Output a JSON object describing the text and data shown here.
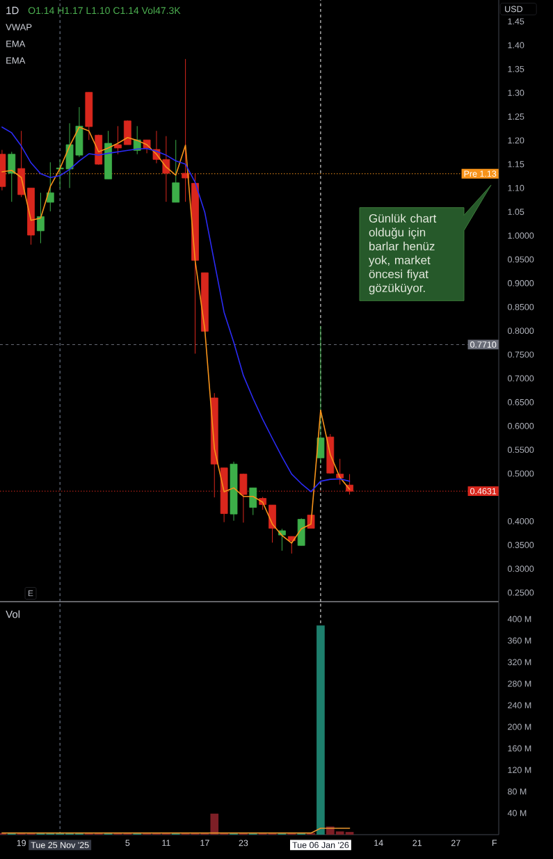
{
  "chart_data": [
    {
      "type": "candlestick",
      "title": "1D",
      "subtitle": "O1.14 H1.17 L1.10 C1.14 Vol47.3K",
      "categories": [
        null,
        null,
        "19",
        null,
        null,
        null,
        "Tue 25 Nov '25",
        null,
        null,
        null,
        null,
        null,
        null,
        "5",
        null,
        null,
        null,
        "11",
        null,
        null,
        null,
        "17",
        null,
        null,
        null,
        "23",
        null,
        null,
        null,
        null,
        null,
        null,
        null,
        "Tue 06 Jan '26",
        null,
        null,
        null,
        null,
        null,
        "14",
        null,
        null,
        null,
        "21",
        null,
        null,
        null,
        "27",
        null,
        null,
        null,
        "F"
      ],
      "ohlc": [
        [
          1.171,
          1.18,
          1.095,
          1.103
        ],
        [
          1.131,
          1.176,
          1.071,
          1.171
        ],
        [
          1.141,
          1.22,
          1.081,
          1.086
        ],
        [
          1.1,
          1.1,
          0.981,
          1.001
        ],
        [
          1.01,
          1.09,
          0.984,
          1.04
        ],
        [
          1.07,
          1.154,
          1.051,
          1.09
        ],
        [
          1.14,
          1.16,
          1.1,
          1.142
        ],
        [
          1.14,
          1.236,
          1.1,
          1.191
        ],
        [
          1.169,
          1.27,
          1.165,
          1.23
        ],
        [
          1.301,
          1.301,
          1.201,
          1.229
        ],
        [
          1.211,
          1.212,
          1.149,
          1.15
        ],
        [
          1.119,
          1.22,
          1.119,
          1.194
        ],
        [
          1.191,
          1.23,
          1.171,
          1.184
        ],
        [
          1.241,
          1.242,
          1.191,
          1.191
        ],
        [
          1.179,
          1.23,
          1.171,
          1.201
        ],
        [
          1.201,
          1.201,
          1.173,
          1.184
        ],
        [
          1.181,
          1.22,
          1.152,
          1.16
        ],
        [
          1.16,
          1.209,
          1.071,
          1.131
        ],
        [
          1.07,
          1.201,
          1.07,
          1.111
        ],
        [
          1.131,
          1.371,
          1.071,
          1.121
        ],
        [
          1.11,
          1.131,
          0.752,
          0.948
        ],
        [
          0.922,
          0.922,
          0.799,
          0.799
        ],
        [
          0.659,
          0.669,
          0.45,
          0.52
        ],
        [
          0.512,
          0.512,
          0.398,
          0.416
        ],
        [
          0.415,
          0.525,
          0.401,
          0.52
        ],
        [
          0.499,
          0.5,
          0.397,
          0.456
        ],
        [
          0.429,
          0.47,
          0.413,
          0.47
        ],
        [
          0.448,
          0.451,
          0.424,
          0.435
        ],
        [
          0.434,
          0.434,
          0.355,
          0.385
        ],
        [
          0.371,
          0.384,
          0.338,
          0.38
        ],
        [
          0.368,
          0.368,
          0.332,
          0.359
        ],
        [
          0.349,
          0.406,
          0.349,
          0.404
        ],
        [
          0.413,
          0.413,
          0.385,
          0.385
        ],
        [
          0.533,
          0.81,
          0.521,
          0.575
        ],
        [
          0.577,
          0.583,
          0.5,
          0.501
        ],
        [
          0.499,
          0.531,
          0.477,
          0.491
        ],
        [
          0.476,
          0.499,
          0.456,
          0.463
        ],
        null,
        null,
        null,
        null,
        null,
        null,
        null,
        null,
        null,
        null,
        null,
        null,
        null,
        null,
        null
      ],
      "colors": [
        "#d9271d",
        "#3dae49",
        "#d9271d",
        "#d9271d",
        "#3dae49",
        "#3dae49",
        "#3dae49",
        "#3dae49",
        "#3dae49",
        "#d9271d",
        "#d9271d",
        "#3dae49",
        "#d9271d",
        "#d9271d",
        "#3dae49",
        "#d9271d",
        "#d9271d",
        "#d9271d",
        "#3dae49",
        "#d9271d",
        "#d9271d",
        "#d9271d",
        "#d9271d",
        "#d9271d",
        "#3dae49",
        "#d9271d",
        "#3dae49",
        "#d9271d",
        "#d9271d",
        "#3dae49",
        "#d9271d",
        "#3dae49",
        "#d9271d",
        "#3dae49",
        "#d9271d",
        "#d9271d",
        "#d9271d",
        null,
        null,
        null,
        null,
        null,
        null,
        null,
        null,
        null,
        null,
        null,
        null,
        null,
        null,
        null
      ],
      "series": [
        {
          "type": "line",
          "color": "#f7931a",
          "values": [
            1.134,
            1.137,
            1.122,
            1.032,
            1.037,
            1.103,
            1.141,
            1.188,
            1.228,
            1.22,
            1.176,
            1.184,
            1.194,
            1.206,
            1.2,
            1.191,
            1.171,
            1.144,
            1.127,
            1.19,
            0.948,
            0.804,
            0.552,
            0.462,
            0.47,
            0.452,
            0.452,
            0.44,
            0.394,
            0.37,
            0.354,
            0.384,
            0.394,
            0.633,
            0.54,
            0.492,
            0.467,
            null,
            null,
            null,
            null,
            null,
            null,
            null,
            null,
            null,
            null,
            null,
            null,
            null,
            null,
            null
          ]
        },
        {
          "type": "line",
          "color": "#2b2bf5",
          "values": [
            1.228,
            1.216,
            1.188,
            1.153,
            1.13,
            1.122,
            1.126,
            1.139,
            1.157,
            1.172,
            1.169,
            1.173,
            1.176,
            1.179,
            1.182,
            1.183,
            1.177,
            1.169,
            1.157,
            1.15,
            1.112,
            1.049,
            0.944,
            0.839,
            0.776,
            0.706,
            0.658,
            0.614,
            0.574,
            0.535,
            0.499,
            0.479,
            0.462,
            0.484,
            0.488,
            0.489,
            0.484,
            null,
            null,
            null,
            null,
            null,
            null,
            null,
            null,
            null,
            null,
            null,
            null,
            null,
            null,
            null
          ]
        }
      ],
      "ylim": [
        0.231,
        1.495
      ],
      "yticks": [
        1.45,
        {
          "value": 1.4,
          "label": "1.40"
        },
        1.35,
        {
          "value": 1.3,
          "label": "1.30"
        },
        1.25,
        {
          "value": 1.2,
          "label": "1.20"
        },
        1.15,
        {
          "value": 1.1,
          "label": "1.10"
        },
        1.05,
        {
          "value": 1,
          "label": "1.0000"
        },
        {
          "value": 0.95,
          "label": "0.9500"
        },
        {
          "value": 0.9,
          "label": "0.9000"
        },
        {
          "value": 0.85,
          "label": "0.8500"
        },
        {
          "value": 0.8,
          "label": "0.8000"
        },
        {
          "value": 0.75,
          "label": "0.7500"
        },
        {
          "value": 0.7,
          "label": "0.7000"
        },
        {
          "value": 0.65,
          "label": "0.6500"
        },
        {
          "value": 0.6,
          "label": "0.6000"
        },
        {
          "value": 0.55,
          "label": "0.5500"
        },
        {
          "value": 0.5,
          "label": "0.5000"
        },
        {
          "value": 0.4,
          "label": "0.4000"
        },
        {
          "value": 0.35,
          "label": "0.3500"
        },
        {
          "value": 0.3,
          "label": "0.3000"
        },
        {
          "value": 0.25,
          "label": "0.2500"
        }
      ],
      "tick_labels": "y",
      "ref_lines": [
        {
          "axis": "y",
          "value": 1.13,
          "label": "Pre 1.13",
          "color": "#f7931a",
          "line_style": "dotted"
        },
        {
          "axis": "y",
          "value": 0.771,
          "label": "0.7710",
          "color": "#6a6d78",
          "line_style": "dashed"
        },
        {
          "axis": "y",
          "value": 0.4631,
          "label": "0.4631",
          "color": "#d9271d",
          "line_style": "dotted"
        },
        {
          "axis": "x",
          "value": "Tue 25 Nov '25",
          "color": "#7d8aa0",
          "line_style": "dashed"
        },
        {
          "axis": "x",
          "value": "Tue 06 Jan '26",
          "color": "#ffffff",
          "line_style": "dashed"
        }
      ],
      "annotations": [
        "VWAP",
        "EMA",
        "EMA",
        "USD",
        "Günlük chart olduğu için barlar henüz yok, market öncesi fiyat gözüküyor.",
        "E"
      ]
    },
    {
      "type": "bar",
      "title": "Vol",
      "categories": [
        null,
        null,
        "19",
        null,
        null,
        null,
        "Tue 25 Nov '25",
        null,
        null,
        null,
        null,
        null,
        null,
        "5",
        null,
        null,
        null,
        "11",
        null,
        null,
        null,
        "17",
        null,
        null,
        null,
        "23",
        null,
        null,
        null,
        null,
        null,
        null,
        null,
        "Tue 06 Jan '26",
        null,
        null,
        null,
        null,
        null,
        "14",
        null,
        null,
        null,
        "21",
        null,
        null,
        null,
        "27",
        null,
        null,
        null,
        "F"
      ],
      "series": [
        {
          "type": "bar",
          "colors": [
            "#7d1f26",
            "#1d7f6d",
            "#7d1f26",
            "#7d1f26",
            "#1d7f6d",
            "#1d7f6d",
            "#1d7f6d",
            "#1d7f6d",
            "#1d7f6d",
            "#7d1f26",
            "#7d1f26",
            "#1d7f6d",
            "#7d1f26",
            "#7d1f26",
            "#1d7f6d",
            "#7d1f26",
            "#7d1f26",
            "#7d1f26",
            "#1d7f6d",
            "#7d1f26",
            "#7d1f26",
            "#7d1f26",
            "#7d1f26",
            "#7d1f26",
            "#1d7f6d",
            "#7d1f26",
            "#1d7f6d",
            "#7d1f26",
            "#7d1f26",
            "#1d7f6d",
            "#7d1f26",
            "#1d7f6d",
            "#7d1f26",
            "#1d7f6d",
            "#7d1f26",
            "#7d1f26",
            "#7d1f26",
            null,
            null,
            null,
            null,
            null,
            null,
            null,
            null,
            null,
            null,
            null,
            null,
            null,
            null,
            null
          ],
          "values": [
            3,
            3,
            3,
            3,
            3,
            3,
            3,
            3,
            3,
            3,
            3,
            3,
            3,
            3,
            3,
            3,
            3,
            3,
            3,
            3,
            3,
            3,
            39,
            3,
            3,
            3,
            3,
            3,
            3,
            3,
            3,
            3,
            3,
            388,
            15,
            6,
            5,
            null,
            null,
            null,
            null,
            null,
            null,
            null,
            null,
            null,
            null,
            null,
            null,
            null,
            null,
            null
          ]
        },
        {
          "type": "line",
          "color": "#e8962e",
          "values": [
            3,
            3,
            3,
            3,
            3,
            3,
            3,
            3,
            3,
            3,
            3,
            3,
            3,
            3,
            3,
            3,
            3,
            3,
            3,
            3,
            3,
            3,
            3,
            3,
            3,
            3,
            3,
            3,
            3,
            3,
            3,
            3,
            3,
            12,
            12,
            12,
            12,
            null,
            null,
            null,
            null,
            null,
            null,
            null,
            null,
            null,
            null,
            null,
            null,
            null,
            null,
            null
          ]
        }
      ],
      "ylim": [
        0,
        431
      ],
      "yticks": [
        {
          "value": 40,
          "label": "40 M"
        },
        {
          "value": 80,
          "label": "80 M"
        },
        {
          "value": 120,
          "label": "120 M"
        },
        {
          "value": 160,
          "label": "160 M"
        },
        {
          "value": 200,
          "label": "200 M"
        },
        {
          "value": 240,
          "label": "240 M"
        },
        {
          "value": 280,
          "label": "280 M"
        },
        {
          "value": 320,
          "label": "320 M"
        },
        {
          "value": 360,
          "label": "360 M"
        },
        {
          "value": 400,
          "label": "400 M"
        }
      ],
      "ref_lines": [
        {
          "axis": "x",
          "value": "Tue 25 Nov '25",
          "color": "#7d8aa0",
          "line_style": "dashed"
        },
        {
          "axis": "x",
          "value": "Tue 06 Jan '26",
          "color": "#ffffff",
          "line_style": "dashed"
        }
      ]
    }
  ]
}
